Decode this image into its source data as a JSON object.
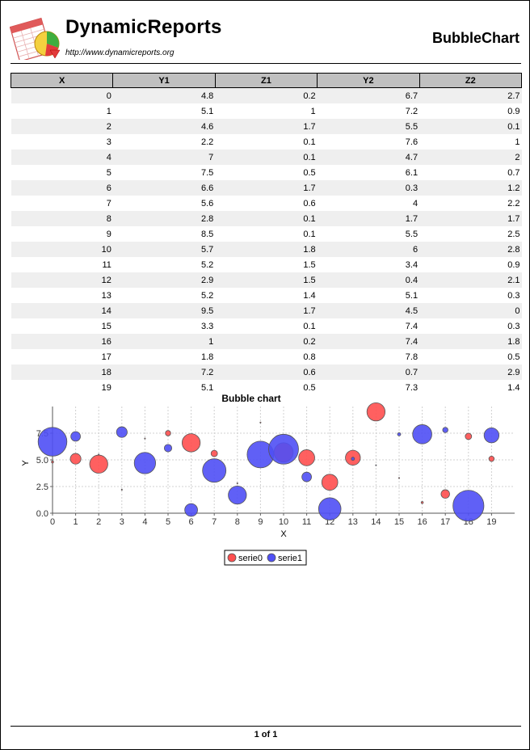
{
  "header": {
    "brand_name": "DynamicReports",
    "brand_url": "http://www.dynamicreports.org",
    "report_title": "BubbleChart"
  },
  "table": {
    "columns": [
      "X",
      "Y1",
      "Z1",
      "Y2",
      "Z2"
    ],
    "rows": [
      [
        "0",
        "4.8",
        "0.2",
        "6.7",
        "2.7"
      ],
      [
        "1",
        "5.1",
        "1",
        "7.2",
        "0.9"
      ],
      [
        "2",
        "4.6",
        "1.7",
        "5.5",
        "0.1"
      ],
      [
        "3",
        "2.2",
        "0.1",
        "7.6",
        "1"
      ],
      [
        "4",
        "7",
        "0.1",
        "4.7",
        "2"
      ],
      [
        "5",
        "7.5",
        "0.5",
        "6.1",
        "0.7"
      ],
      [
        "6",
        "6.6",
        "1.7",
        "0.3",
        "1.2"
      ],
      [
        "7",
        "5.6",
        "0.6",
        "4",
        "2.2"
      ],
      [
        "8",
        "2.8",
        "0.1",
        "1.7",
        "1.7"
      ],
      [
        "9",
        "8.5",
        "0.1",
        "5.5",
        "2.5"
      ],
      [
        "10",
        "5.7",
        "1.8",
        "6",
        "2.8"
      ],
      [
        "11",
        "5.2",
        "1.5",
        "3.4",
        "0.9"
      ],
      [
        "12",
        "2.9",
        "1.5",
        "0.4",
        "2.1"
      ],
      [
        "13",
        "5.2",
        "1.4",
        "5.1",
        "0.3"
      ],
      [
        "14",
        "9.5",
        "1.7",
        "4.5",
        "0"
      ],
      [
        "15",
        "3.3",
        "0.1",
        "7.4",
        "0.3"
      ],
      [
        "16",
        "1",
        "0.2",
        "7.4",
        "1.8"
      ],
      [
        "17",
        "1.8",
        "0.8",
        "7.8",
        "0.5"
      ],
      [
        "18",
        "7.2",
        "0.6",
        "0.7",
        "2.9"
      ],
      [
        "19",
        "5.1",
        "0.5",
        "7.3",
        "1.4"
      ]
    ]
  },
  "chart_data": {
    "type": "scatter",
    "subtype": "bubble",
    "title": "Bubble chart",
    "xlabel": "X",
    "ylabel": "Y",
    "xlim": [
      0,
      20
    ],
    "ylim": [
      0,
      10
    ],
    "x_ticks": [
      "0",
      "1",
      "2",
      "3",
      "4",
      "5",
      "6",
      "7",
      "8",
      "9",
      "10",
      "11",
      "12",
      "13",
      "14",
      "15",
      "16",
      "17",
      "18",
      "19"
    ],
    "y_ticks": [
      "0.0",
      "2.5",
      "5.0",
      "7.5"
    ],
    "grid": true,
    "legend_position": "bottom",
    "series": [
      {
        "name": "serie0",
        "color": "#ff4f4f",
        "points": [
          {
            "x": 0,
            "y": 4.8,
            "z": 0.2
          },
          {
            "x": 1,
            "y": 5.1,
            "z": 1
          },
          {
            "x": 2,
            "y": 4.6,
            "z": 1.7
          },
          {
            "x": 3,
            "y": 2.2,
            "z": 0.1
          },
          {
            "x": 4,
            "y": 7,
            "z": 0.1
          },
          {
            "x": 5,
            "y": 7.5,
            "z": 0.5
          },
          {
            "x": 6,
            "y": 6.6,
            "z": 1.7
          },
          {
            "x": 7,
            "y": 5.6,
            "z": 0.6
          },
          {
            "x": 8,
            "y": 2.8,
            "z": 0.1
          },
          {
            "x": 9,
            "y": 8.5,
            "z": 0.1
          },
          {
            "x": 10,
            "y": 5.7,
            "z": 1.8
          },
          {
            "x": 11,
            "y": 5.2,
            "z": 1.5
          },
          {
            "x": 12,
            "y": 2.9,
            "z": 1.5
          },
          {
            "x": 13,
            "y": 5.2,
            "z": 1.4
          },
          {
            "x": 14,
            "y": 9.5,
            "z": 1.7
          },
          {
            "x": 15,
            "y": 3.3,
            "z": 0.1
          },
          {
            "x": 16,
            "y": 1,
            "z": 0.2
          },
          {
            "x": 17,
            "y": 1.8,
            "z": 0.8
          },
          {
            "x": 18,
            "y": 7.2,
            "z": 0.6
          },
          {
            "x": 19,
            "y": 5.1,
            "z": 0.5
          }
        ]
      },
      {
        "name": "serie1",
        "color": "#4f4ff5",
        "points": [
          {
            "x": 0,
            "y": 6.7,
            "z": 2.7
          },
          {
            "x": 1,
            "y": 7.2,
            "z": 0.9
          },
          {
            "x": 2,
            "y": 5.5,
            "z": 0.1
          },
          {
            "x": 3,
            "y": 7.6,
            "z": 1
          },
          {
            "x": 4,
            "y": 4.7,
            "z": 2
          },
          {
            "x": 5,
            "y": 6.1,
            "z": 0.7
          },
          {
            "x": 6,
            "y": 0.3,
            "z": 1.2
          },
          {
            "x": 7,
            "y": 4,
            "z": 2.2
          },
          {
            "x": 8,
            "y": 1.7,
            "z": 1.7
          },
          {
            "x": 9,
            "y": 5.5,
            "z": 2.5
          },
          {
            "x": 10,
            "y": 6,
            "z": 2.8
          },
          {
            "x": 11,
            "y": 3.4,
            "z": 0.9
          },
          {
            "x": 12,
            "y": 0.4,
            "z": 2.1
          },
          {
            "x": 13,
            "y": 5.1,
            "z": 0.3
          },
          {
            "x": 14,
            "y": 4.5,
            "z": 0
          },
          {
            "x": 15,
            "y": 7.4,
            "z": 0.3
          },
          {
            "x": 16,
            "y": 7.4,
            "z": 1.8
          },
          {
            "x": 17,
            "y": 7.8,
            "z": 0.5
          },
          {
            "x": 18,
            "y": 0.7,
            "z": 2.9
          },
          {
            "x": 19,
            "y": 7.3,
            "z": 1.4
          }
        ]
      }
    ]
  },
  "footer": {
    "page_label": "1 of 1"
  }
}
